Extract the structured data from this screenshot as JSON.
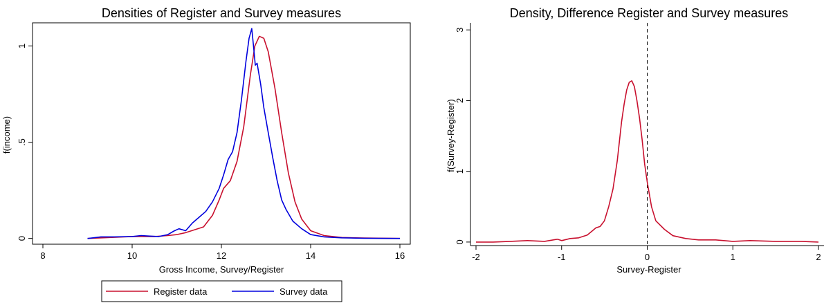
{
  "chart_data": [
    {
      "type": "line",
      "title": "Densities of Register and Survey measures",
      "xlabel": "Gross Income, Survey/Register",
      "ylabel": "f(income)",
      "xlim": [
        8,
        16
      ],
      "ylim": [
        -0.03,
        1.12
      ],
      "xticks": [
        8,
        10,
        12,
        14,
        16
      ],
      "xtick_labels": [
        "8",
        "10",
        "12",
        "14",
        "16"
      ],
      "yticks": [
        0,
        0.5,
        1
      ],
      "ytick_labels": [
        "0",
        ".5",
        "1"
      ],
      "grid": false,
      "legend_position": "bottom",
      "series": [
        {
          "name": "Register data",
          "color": "#c8102e",
          "x": [
            9.0,
            9.5,
            10.0,
            10.5,
            10.8,
            11.0,
            11.2,
            11.4,
            11.6,
            11.8,
            11.95,
            12.05,
            12.2,
            12.35,
            12.5,
            12.65,
            12.75,
            12.85,
            12.95,
            13.05,
            13.2,
            13.35,
            13.5,
            13.65,
            13.8,
            14.0,
            14.3,
            14.7,
            15.2,
            16.0
          ],
          "y": [
            0.0,
            0.005,
            0.01,
            0.01,
            0.015,
            0.02,
            0.03,
            0.045,
            0.06,
            0.12,
            0.2,
            0.26,
            0.3,
            0.4,
            0.58,
            0.85,
            1.0,
            1.05,
            1.04,
            0.97,
            0.78,
            0.55,
            0.34,
            0.19,
            0.1,
            0.04,
            0.015,
            0.005,
            0.002,
            0.0
          ]
        },
        {
          "name": "Survey data",
          "color": "#0000dd",
          "x": [
            9.0,
            9.3,
            9.6,
            10.0,
            10.2,
            10.4,
            10.6,
            10.8,
            10.95,
            11.05,
            11.2,
            11.35,
            11.5,
            11.65,
            11.8,
            11.95,
            12.05,
            12.15,
            12.25,
            12.35,
            12.45,
            12.55,
            12.62,
            12.68,
            12.72,
            12.76,
            12.8,
            12.88,
            12.95,
            13.05,
            13.15,
            13.25,
            13.35,
            13.45,
            13.6,
            13.8,
            14.0,
            14.3,
            14.7,
            15.2,
            16.0
          ],
          "y": [
            0.0,
            0.008,
            0.008,
            0.01,
            0.015,
            0.012,
            0.01,
            0.02,
            0.04,
            0.05,
            0.04,
            0.08,
            0.11,
            0.14,
            0.19,
            0.26,
            0.33,
            0.41,
            0.45,
            0.55,
            0.72,
            0.92,
            1.04,
            1.09,
            1.0,
            0.9,
            0.91,
            0.8,
            0.68,
            0.55,
            0.42,
            0.3,
            0.2,
            0.15,
            0.09,
            0.05,
            0.02,
            0.008,
            0.003,
            0.001,
            0.0
          ]
        }
      ]
    },
    {
      "type": "line",
      "title": "Density, Difference Register and Survey measures",
      "xlabel": "Survey-Register",
      "ylabel": "f(Survey-Register)",
      "xlim": [
        -2.05,
        2.05
      ],
      "ylim": [
        -0.05,
        3.1
      ],
      "xticks": [
        -2,
        -1,
        0,
        1,
        2
      ],
      "xtick_labels": [
        "-2",
        "-1",
        "0",
        "1",
        "2"
      ],
      "yticks": [
        0,
        1,
        2,
        3
      ],
      "ytick_labels": [
        "0",
        "1",
        "2",
        "3"
      ],
      "grid": false,
      "reference_line": {
        "x": 0,
        "style": "dashed"
      },
      "series": [
        {
          "color": "#c8102e",
          "x": [
            -2.0,
            -1.8,
            -1.6,
            -1.4,
            -1.2,
            -1.05,
            -1.0,
            -0.9,
            -0.8,
            -0.7,
            -0.6,
            -0.55,
            -0.5,
            -0.45,
            -0.4,
            -0.35,
            -0.3,
            -0.27,
            -0.24,
            -0.21,
            -0.18,
            -0.15,
            -0.12,
            -0.09,
            -0.06,
            -0.03,
            0.0,
            0.05,
            0.1,
            0.2,
            0.3,
            0.45,
            0.6,
            0.8,
            1.0,
            1.2,
            1.5,
            1.8,
            2.0
          ],
          "y": [
            0.0,
            0.0,
            0.01,
            0.02,
            0.01,
            0.04,
            0.02,
            0.05,
            0.06,
            0.1,
            0.2,
            0.22,
            0.3,
            0.5,
            0.75,
            1.15,
            1.7,
            1.95,
            2.15,
            2.26,
            2.28,
            2.2,
            2.0,
            1.75,
            1.45,
            1.1,
            0.85,
            0.5,
            0.3,
            0.18,
            0.09,
            0.05,
            0.03,
            0.03,
            0.01,
            0.02,
            0.01,
            0.01,
            0.0
          ]
        }
      ]
    }
  ],
  "legend": {
    "items": [
      {
        "label": "Register data",
        "color": "#c8102e"
      },
      {
        "label": "Survey data",
        "color": "#0000dd"
      }
    ]
  }
}
